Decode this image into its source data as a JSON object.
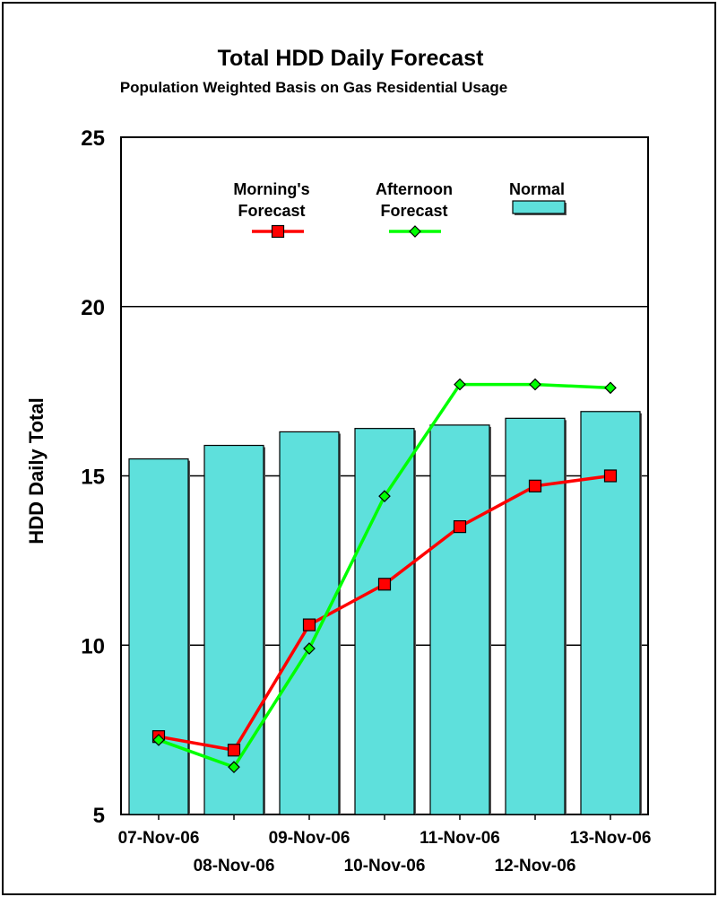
{
  "chart_data": {
    "type": "bar",
    "title": "Total HDD Daily Forecast",
    "subtitle": "Population Weighted Basis on Gas Residential Usage",
    "ylabel": "HDD Daily Total",
    "xlabel": "",
    "ylim": [
      5,
      25
    ],
    "yticks": [
      5,
      10,
      15,
      20,
      25
    ],
    "grid": "horizontal",
    "legend_position": "top",
    "categories": [
      "07-Nov-06",
      "08-Nov-06",
      "09-Nov-06",
      "10-Nov-06",
      "11-Nov-06",
      "12-Nov-06",
      "13-Nov-06"
    ],
    "series": [
      {
        "name": "Normal",
        "type": "bar",
        "color": "#5ee0dc",
        "values": [
          15.5,
          15.9,
          16.3,
          16.4,
          16.5,
          16.7,
          16.9
        ]
      },
      {
        "name": "Morning's Forecast",
        "type": "line",
        "color": "#ff0000",
        "marker": "square",
        "values": [
          7.3,
          6.9,
          10.6,
          11.8,
          13.5,
          14.7,
          15.0
        ]
      },
      {
        "name": "Afternoon Forecast",
        "type": "line",
        "color": "#00ff00",
        "marker": "diamond",
        "values": [
          7.2,
          6.4,
          9.9,
          14.4,
          17.7,
          17.7,
          17.6
        ]
      }
    ],
    "legend": {
      "morning": [
        "Morning's",
        "Forecast"
      ],
      "afternoon": [
        "Afternoon",
        "Forecast"
      ],
      "normal": "Normal"
    }
  }
}
